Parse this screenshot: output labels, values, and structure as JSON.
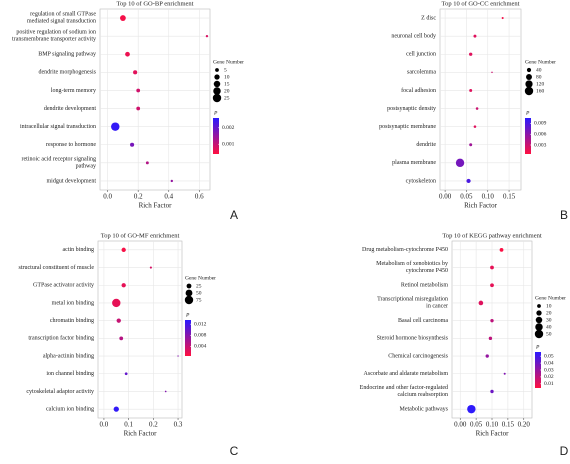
{
  "chart_data": [
    {
      "type": "scatter",
      "title": "Top 10 of GO-BP enrichment",
      "label": "A",
      "xlabel": "Rich Factor",
      "categories": [
        "regulation of small GTPase\nmediated signal transduction",
        "positive regulation of sodium ion\ntransmembrane transporter activity",
        "BMP signaling pathway",
        "dendrite morphogenesis",
        "long-term memory",
        "dendrite development",
        "intracellular signal transduction",
        "response to hormone",
        "retinoic acid receptor signaling\npathway",
        "midgut development"
      ],
      "values": [
        0.1,
        0.65,
        0.13,
        0.18,
        0.2,
        0.2,
        0.05,
        0.16,
        0.26,
        0.42
      ],
      "sizes": [
        12,
        2,
        8,
        6,
        5,
        5,
        25,
        6,
        3,
        2
      ],
      "pvalues": [
        0.0005,
        0.0008,
        0.0006,
        0.0007,
        0.0009,
        0.0009,
        0.0025,
        0.0018,
        0.0012,
        0.0015
      ],
      "xlim": [
        -0.05,
        0.67
      ],
      "xticks": [
        {
          "value": 0,
          "label": "0.0"
        },
        0.2,
        0.4,
        0.6
      ],
      "size_legend_title": "Gene Number",
      "size_legend": [
        5,
        10,
        15,
        20,
        25
      ],
      "color_legend_title": "P",
      "color_lim": [
        0.0004,
        0.0026
      ],
      "color_ticks": [
        0.002,
        0.001
      ],
      "color_low": "#ff1040",
      "color_high": "#2a1aff",
      "grid": true
    },
    {
      "type": "scatter",
      "title": "Top 10 of GO-CC enrichment",
      "label": "B",
      "xlabel": "Rich Factor",
      "categories": [
        "Z disc",
        "neuronal cell body",
        "cell junction",
        "sarcolemma",
        "focal adhesion",
        "postsynaptic density",
        "postsynaptic membrane",
        "dendrite",
        "plasma membrane",
        "cytoskeleton"
      ],
      "values": [
        0.135,
        0.07,
        0.06,
        0.11,
        0.06,
        0.075,
        0.07,
        0.06,
        0.035,
        0.055
      ],
      "sizes": [
        10,
        20,
        25,
        5,
        20,
        15,
        15,
        20,
        160,
        40
      ],
      "pvalues": [
        0.001,
        0.002,
        0.002,
        0.003,
        0.002,
        0.003,
        0.002,
        0.005,
        0.007,
        0.009
      ],
      "xlim": [
        -0.012,
        0.178
      ],
      "xticks": [
        {
          "value": 0,
          "label": "0.00"
        },
        0.05,
        {
          "value": 0.1,
          "label": "0.10"
        },
        0.15
      ],
      "size_legend_title": "Gene Number",
      "size_legend": [
        40,
        80,
        120,
        160
      ],
      "color_legend_title": "P",
      "color_lim": [
        0.0005,
        0.0105
      ],
      "color_ticks": [
        0.009,
        0.006,
        0.003
      ],
      "color_low": "#ff1040",
      "color_high": "#2a1aff",
      "grid": true
    },
    {
      "type": "scatter",
      "title": "Top 10 of GO-MF enrichment",
      "label": "C",
      "xlabel": "Rich Factor",
      "categories": [
        "actin binding",
        "structural constituent of muscle",
        "GTPase activator activity",
        "metal ion binding",
        "chromatin binding",
        "transcription factor binding",
        "alpha-actinin binding",
        "ion channel binding",
        "cytoskeletal adaptor activity",
        "calcium ion binding"
      ],
      "values": [
        0.08,
        0.19,
        0.08,
        0.05,
        0.06,
        0.07,
        0.3,
        0.09,
        0.25,
        0.05
      ],
      "sizes": [
        20,
        5,
        20,
        75,
        20,
        15,
        2,
        8,
        3,
        30
      ],
      "pvalues": [
        0.001,
        0.003,
        0.002,
        0.002,
        0.004,
        0.005,
        0.008,
        0.01,
        0.008,
        0.013
      ],
      "xlim": [
        -0.024,
        0.316
      ],
      "xticks": [
        {
          "value": 0,
          "label": "0.0"
        },
        0.1,
        0.2,
        0.3
      ],
      "size_legend_title": "Gene Number",
      "size_legend": [
        25,
        50,
        75
      ],
      "color_legend_title": "P",
      "color_lim": [
        0.0005,
        0.0135
      ],
      "color_ticks": [
        0.012,
        0.008,
        0.004
      ],
      "color_low": "#ff1040",
      "color_high": "#2a1aff",
      "grid": true
    },
    {
      "type": "scatter",
      "title": "Top 10 of KEGG pathway enrichment",
      "label": "D",
      "xlabel": "Rich Factor",
      "categories": [
        "Drug metabolism-cytochrome P450",
        "Metabolism of xenobiotics by\ncytochrome P450",
        "Retinol metabolism",
        "Transcriptional misregulation\nin cancer",
        "Basal cell carcinoma",
        "Steroid hormone biosynthesis",
        "Chemical carcinogenesis",
        "Ascorbate and aldarate metabolism",
        "Endocrine and other factor-regulated\ncalcium reabsorption",
        "Metabolic pathways"
      ],
      "values": [
        0.13,
        0.1,
        0.1,
        0.065,
        0.1,
        0.095,
        0.085,
        0.14,
        0.1,
        0.035
      ],
      "sizes": [
        10,
        10,
        10,
        15,
        8,
        8,
        8,
        3,
        8,
        50
      ],
      "pvalues": [
        0.005,
        0.01,
        0.01,
        0.012,
        0.02,
        0.02,
        0.03,
        0.035,
        0.04,
        0.055
      ],
      "xlim": [
        -0.026,
        0.226
      ],
      "xticks": [
        {
          "value": 0,
          "label": "0.00"
        },
        0.05,
        {
          "value": 0.1,
          "label": "0.10"
        },
        0.15,
        {
          "value": 0.2,
          "label": "0.20"
        }
      ],
      "size_legend_title": "Gene Number",
      "size_legend": [
        10,
        20,
        30,
        40,
        50
      ],
      "color_legend_title": "P",
      "color_lim": [
        0.004,
        0.056
      ],
      "color_ticks": [
        0.05,
        0.04,
        0.03,
        0.02,
        0.01
      ],
      "color_low": "#ff1040",
      "color_high": "#2a1aff",
      "grid": true
    }
  ]
}
